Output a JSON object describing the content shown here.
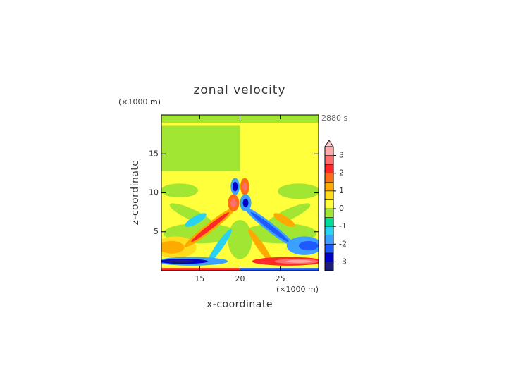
{
  "chart_data": {
    "type": "contour",
    "title": "zonal velocity",
    "xlabel": "x-coordinate",
    "ylabel": "z-coordinate",
    "x_unit": "(×1000 m)",
    "y_unit": "(×1000 m)",
    "time_label": "2880 s",
    "xlim": [
      10.25,
      29.75
    ],
    "ylim": [
      0,
      20
    ],
    "xticks": [
      15,
      20,
      25
    ],
    "yticks": [
      5,
      10,
      15
    ],
    "colorbar": {
      "levels": [
        -3.5,
        -3,
        -2.5,
        -2,
        -1.5,
        -1,
        -0.5,
        0,
        0.5,
        1,
        1.5,
        2,
        2.5,
        3,
        3.5
      ],
      "colors": [
        "#1e1e78",
        "#0000c8",
        "#1e5aff",
        "#3ca0ff",
        "#28d2f0",
        "#00dc96",
        "#a0e632",
        "#ffff3c",
        "#ffdc1e",
        "#ffaa00",
        "#ff6e14",
        "#ff2828",
        "#ff6e6e",
        "#ffaaaa"
      ],
      "extend_color": "#ffc8c8",
      "ticks": [
        -3,
        -2,
        -1,
        0,
        1,
        2,
        3
      ]
    }
  }
}
